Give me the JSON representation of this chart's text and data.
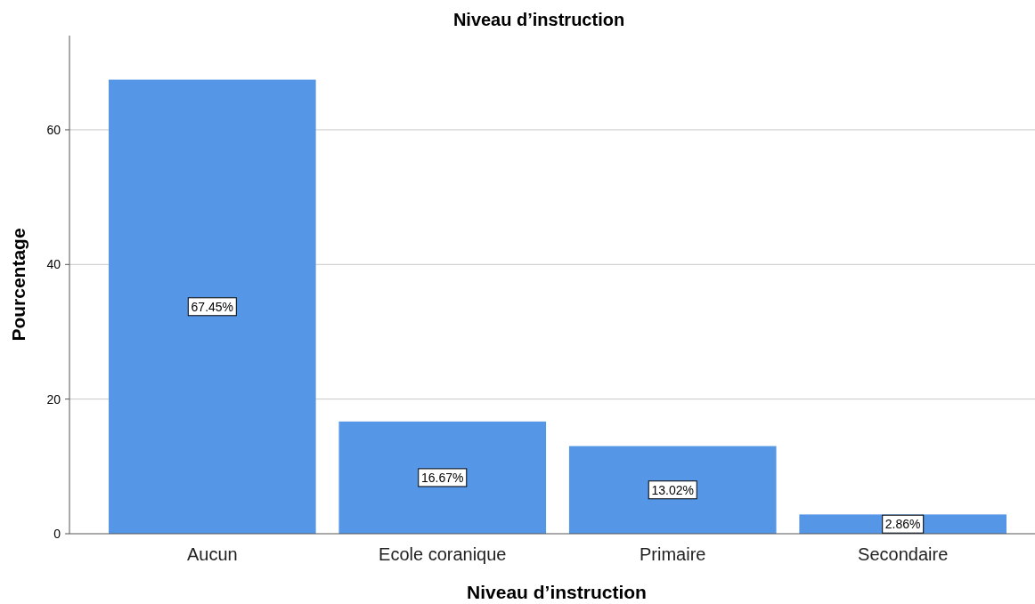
{
  "chart_data": {
    "type": "bar",
    "title": "Niveau d’instruction",
    "xlabel": "Niveau d’instruction",
    "ylabel": "Pourcentage",
    "categories": [
      "Aucun",
      "Ecole coranique",
      "Primaire",
      "Secondaire"
    ],
    "values": [
      67.45,
      16.67,
      13.02,
      2.86
    ],
    "value_labels": [
      "67.45%",
      "16.67%",
      "13.02%",
      "2.86%"
    ],
    "color": "#5596e6",
    "ylim": [
      0,
      74
    ],
    "yticks": [
      0,
      20,
      40,
      60
    ],
    "grid": "y"
  }
}
